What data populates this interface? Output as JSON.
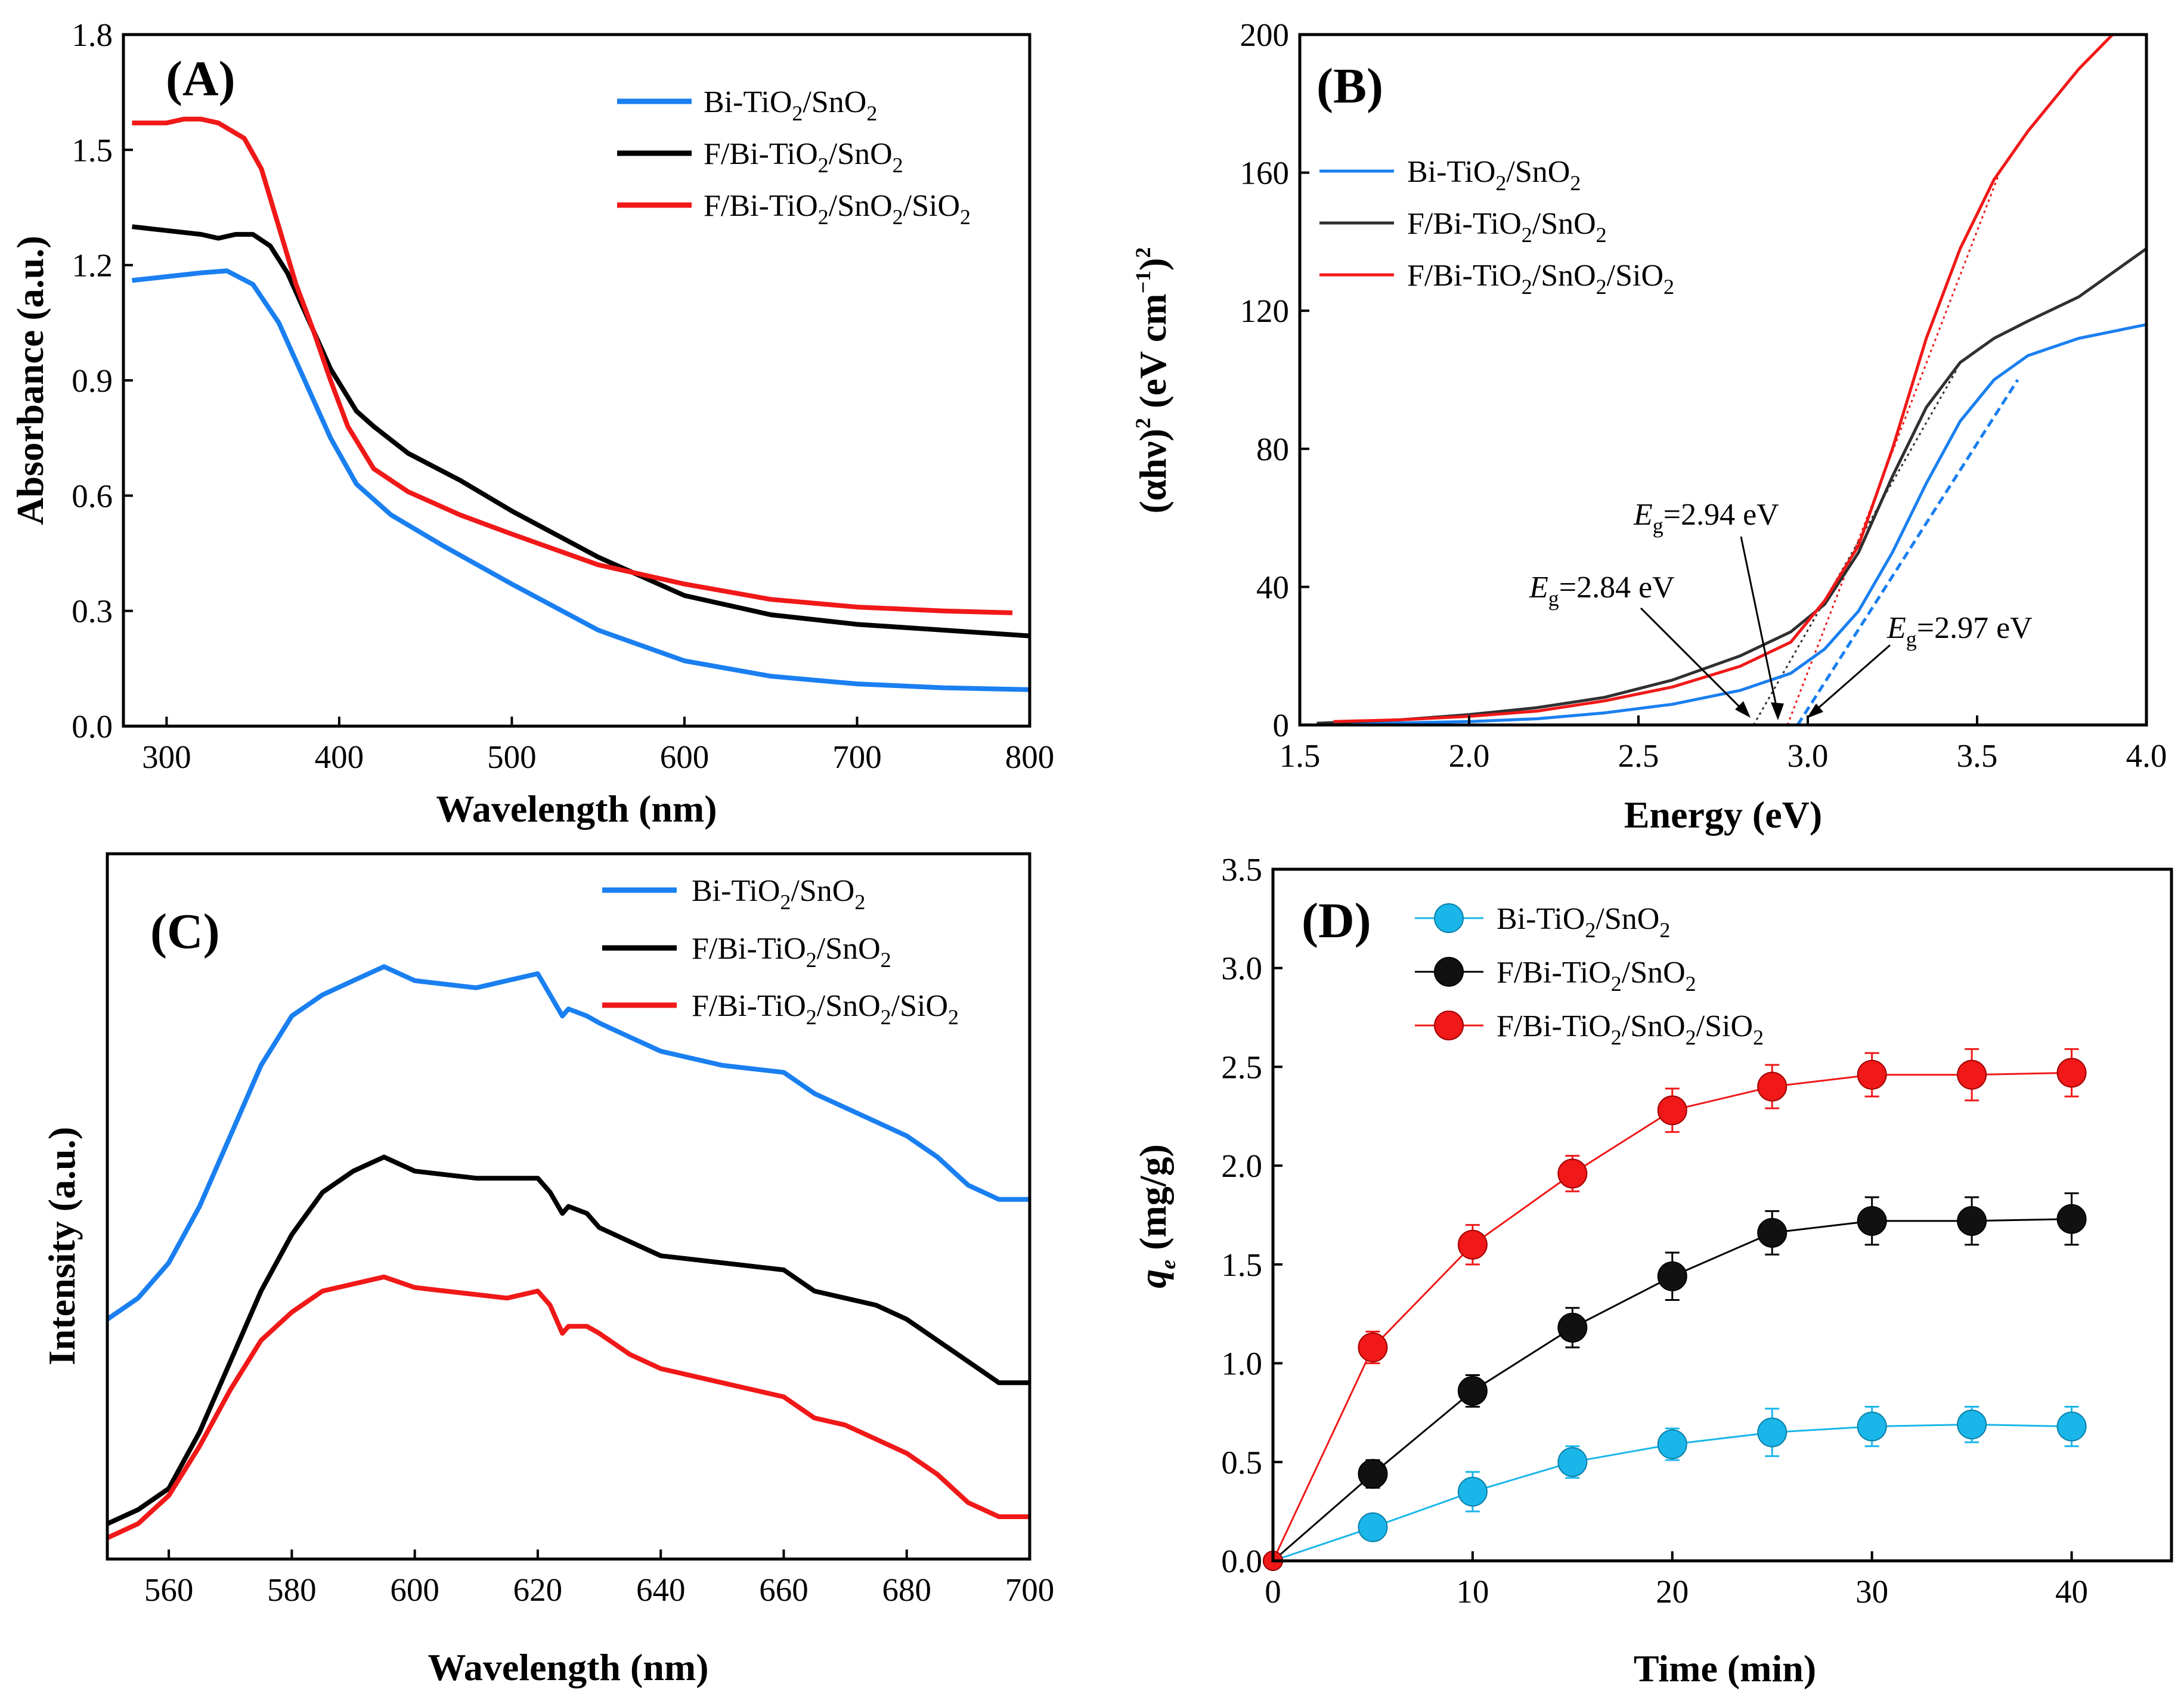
{
  "chart_data": [
    {
      "type": "line",
      "panel_label": "(A)",
      "xlabel": "Wavelength  (nm)",
      "ylabel": "Absorbance (a.u.)",
      "xlim": [
        275,
        800
      ],
      "ylim": [
        0.0,
        1.8
      ],
      "xticks": [
        "300",
        "400",
        "500",
        "600",
        "700",
        "800"
      ],
      "yticks": [
        "0.0",
        "0.3",
        "0.6",
        "0.9",
        "1.2",
        "1.5",
        "1.8"
      ],
      "legend_position": "top-right",
      "series": [
        {
          "name": "Bi-TiO2/SnO2",
          "color": "#1a7ff0",
          "x": [
            280,
            300,
            320,
            335,
            350,
            365,
            380,
            395,
            410,
            430,
            460,
            500,
            550,
            600,
            650,
            700,
            750,
            800
          ],
          "y": [
            1.16,
            1.17,
            1.18,
            1.185,
            1.15,
            1.05,
            0.9,
            0.75,
            0.63,
            0.55,
            0.47,
            0.37,
            0.25,
            0.17,
            0.13,
            0.11,
            0.1,
            0.095
          ]
        },
        {
          "name": "F/Bi-TiO2/SnO2",
          "color": "#000000",
          "x": [
            280,
            300,
            320,
            330,
            340,
            350,
            360,
            370,
            380,
            395,
            410,
            420,
            440,
            470,
            500,
            550,
            600,
            650,
            700,
            750,
            800
          ],
          "y": [
            1.3,
            1.29,
            1.28,
            1.27,
            1.28,
            1.28,
            1.25,
            1.18,
            1.08,
            0.93,
            0.82,
            0.78,
            0.71,
            0.64,
            0.56,
            0.44,
            0.34,
            0.29,
            0.265,
            0.25,
            0.235
          ]
        },
        {
          "name": "F/Bi-TiO2/SnO2/SiO2",
          "color": "#f01818",
          "x": [
            280,
            300,
            310,
            320,
            330,
            345,
            355,
            365,
            375,
            385,
            395,
            405,
            420,
            440,
            470,
            500,
            550,
            600,
            650,
            700,
            750,
            790
          ],
          "y": [
            1.57,
            1.57,
            1.58,
            1.58,
            1.57,
            1.53,
            1.45,
            1.3,
            1.15,
            1.03,
            0.9,
            0.78,
            0.67,
            0.61,
            0.55,
            0.5,
            0.42,
            0.37,
            0.33,
            0.31,
            0.3,
            0.295
          ]
        }
      ]
    },
    {
      "type": "line",
      "panel_label": "(B)",
      "xlabel": "Energy (eV)",
      "ylabel": "(αhν)2 (eV cm−1)2",
      "ylabel_parts": [
        "(αhν)",
        "2",
        " (eV cm",
        "−1",
        ")",
        "2"
      ],
      "xlim": [
        1.5,
        4.0
      ],
      "ylim": [
        0,
        200
      ],
      "xticks": [
        "1.5",
        "2.0",
        "2.5",
        "3.0",
        "3.5",
        "4.0"
      ],
      "yticks": [
        "0",
        "40",
        "80",
        "120",
        "160",
        "200"
      ],
      "legend_position": "upper-left",
      "series": [
        {
          "name": "Bi-TiO2/SnO2",
          "color": "#1a7ff0",
          "x": [
            1.55,
            1.8,
            2.0,
            2.2,
            2.4,
            2.6,
            2.8,
            2.95,
            3.05,
            3.15,
            3.25,
            3.35,
            3.45,
            3.55,
            3.65,
            3.8,
            4.0
          ],
          "y": [
            0.3,
            0.6,
            1.0,
            1.8,
            3.5,
            6,
            10,
            15,
            22,
            33,
            50,
            70,
            88,
            100,
            107,
            112,
            116
          ]
        },
        {
          "name": "F/Bi-TiO2/SnO2",
          "color": "#303030",
          "x": [
            1.55,
            1.8,
            2.0,
            2.2,
            2.4,
            2.6,
            2.8,
            2.95,
            3.05,
            3.15,
            3.25,
            3.35,
            3.45,
            3.55,
            3.65,
            3.8,
            4.0
          ],
          "y": [
            0.5,
            1.5,
            3,
            5,
            8,
            13,
            20,
            27,
            35,
            50,
            72,
            92,
            105,
            112,
            117,
            124,
            138
          ]
        },
        {
          "name": "F/Bi-TiO2/SnO2/SiO2",
          "color": "#f01818",
          "x": [
            1.6,
            1.8,
            2.0,
            2.2,
            2.4,
            2.6,
            2.8,
            2.95,
            3.05,
            3.15,
            3.25,
            3.35,
            3.45,
            3.55,
            3.65,
            3.8,
            3.9
          ],
          "y": [
            1,
            1.5,
            2.5,
            4,
            7,
            11,
            17,
            24,
            36,
            52,
            80,
            112,
            138,
            158,
            172,
            190,
            200
          ]
        }
      ],
      "tangents": [
        {
          "x": [
            2.84,
            3.44
          ],
          "y": [
            0,
            103
          ],
          "color": "#303030"
        },
        {
          "x": [
            2.94,
            3.57
          ],
          "y": [
            0,
            161
          ],
          "color": "#f01818"
        },
        {
          "x": [
            2.97,
            3.62
          ],
          "y": [
            0,
            100
          ],
          "color": "#1a7ff0"
        }
      ],
      "annotations": [
        {
          "prefix": "E",
          "sub": "g",
          "value": "=2.94 eV",
          "arrow_to": [
            2.94,
            0
          ]
        },
        {
          "prefix": "E",
          "sub": "g",
          "value": "=2.84 eV",
          "arrow_to": [
            2.84,
            0
          ]
        },
        {
          "prefix": "E",
          "sub": "g",
          "value": "=2.97 eV",
          "arrow_to": [
            2.97,
            0
          ]
        }
      ]
    },
    {
      "type": "line",
      "panel_label": "(C)",
      "xlabel": "Wavelength (nm)",
      "ylabel": "Intensity  (a.u.)",
      "xlim": [
        550,
        700
      ],
      "ylim": [
        0,
        1
      ],
      "xticks": [
        "560",
        "580",
        "600",
        "620",
        "640",
        "660",
        "680",
        "700"
      ],
      "yticks": [],
      "legend_position": "top-right",
      "series": [
        {
          "name": "Bi-TiO2/SnO2",
          "color": "#1a7ff0",
          "x": [
            550,
            555,
            560,
            565,
            570,
            575,
            580,
            585,
            590,
            595,
            600,
            605,
            610,
            615,
            620,
            622,
            624,
            625,
            628,
            630,
            635,
            640,
            650,
            660,
            665,
            670,
            675,
            680,
            685,
            690,
            695,
            700
          ],
          "y": [
            0.34,
            0.37,
            0.42,
            0.5,
            0.6,
            0.7,
            0.77,
            0.8,
            0.82,
            0.84,
            0.82,
            0.815,
            0.81,
            0.82,
            0.83,
            0.8,
            0.77,
            0.78,
            0.77,
            0.76,
            0.74,
            0.72,
            0.7,
            0.69,
            0.66,
            0.64,
            0.62,
            0.6,
            0.57,
            0.53,
            0.51,
            0.51
          ]
        },
        {
          "name": "F/Bi-TiO2/SnO2",
          "color": "#000000",
          "x": [
            550,
            555,
            560,
            565,
            570,
            575,
            580,
            585,
            590,
            595,
            600,
            605,
            610,
            615,
            620,
            622,
            624,
            625,
            628,
            630,
            635,
            640,
            650,
            660,
            665,
            670,
            675,
            680,
            685,
            690,
            695,
            700
          ],
          "y": [
            0.05,
            0.07,
            0.1,
            0.18,
            0.28,
            0.38,
            0.46,
            0.52,
            0.55,
            0.57,
            0.55,
            0.545,
            0.54,
            0.54,
            0.54,
            0.52,
            0.49,
            0.5,
            0.49,
            0.47,
            0.45,
            0.43,
            0.42,
            0.41,
            0.38,
            0.37,
            0.36,
            0.34,
            0.31,
            0.28,
            0.25,
            0.25
          ]
        },
        {
          "name": "F/Bi-TiO2/SnO2/SiO2",
          "color": "#f01818",
          "x": [
            550,
            555,
            560,
            565,
            570,
            575,
            580,
            585,
            590,
            595,
            600,
            605,
            610,
            615,
            620,
            622,
            624,
            625,
            628,
            630,
            635,
            640,
            650,
            660,
            665,
            670,
            675,
            680,
            685,
            690,
            695,
            700
          ],
          "y": [
            0.03,
            0.05,
            0.09,
            0.16,
            0.24,
            0.31,
            0.35,
            0.38,
            0.39,
            0.4,
            0.385,
            0.38,
            0.375,
            0.37,
            0.38,
            0.36,
            0.32,
            0.33,
            0.33,
            0.32,
            0.29,
            0.27,
            0.25,
            0.23,
            0.2,
            0.19,
            0.17,
            0.15,
            0.12,
            0.08,
            0.06,
            0.06
          ]
        }
      ]
    },
    {
      "type": "scatter",
      "panel_label": "(D)",
      "xlabel": "Time (min)",
      "ylabel_italic": "q",
      "ylabel_sub": "e",
      "ylabel_unit": "  (mg/g)",
      "xlim": [
        0,
        45
      ],
      "ylim": [
        0.0,
        3.5
      ],
      "xticks": [
        "0",
        "10",
        "20",
        "30",
        "40"
      ],
      "yticks": [
        "0.0",
        "0.5",
        "1.0",
        "1.5",
        "2.0",
        "2.5",
        "3.0",
        "3.5"
      ],
      "legend_position": "top-left",
      "series": [
        {
          "name": "Bi-TiO2/SnO2",
          "color": "#1ab6ea",
          "x": [
            0,
            5,
            10,
            15,
            20,
            25,
            30,
            35,
            40
          ],
          "y": [
            0,
            0.17,
            0.35,
            0.5,
            0.59,
            0.65,
            0.68,
            0.69,
            0.68
          ],
          "err": [
            0,
            0.04,
            0.1,
            0.08,
            0.08,
            0.12,
            0.1,
            0.09,
            0.1
          ]
        },
        {
          "name": "F/Bi-TiO2/SnO2",
          "color": "#000000",
          "x": [
            0,
            5,
            10,
            15,
            20,
            25,
            30,
            35,
            40
          ],
          "y": [
            0,
            0.44,
            0.86,
            1.18,
            1.44,
            1.66,
            1.72,
            1.72,
            1.73
          ],
          "err": [
            0,
            0.07,
            0.08,
            0.1,
            0.12,
            0.11,
            0.12,
            0.12,
            0.13
          ]
        },
        {
          "name": "F/Bi-TiO2/SnO2/SiO2",
          "color": "#f01818",
          "x": [
            0,
            5,
            10,
            15,
            20,
            25,
            30,
            35,
            40
          ],
          "y": [
            0,
            1.08,
            1.6,
            1.96,
            2.28,
            2.4,
            2.46,
            2.46,
            2.47
          ],
          "err": [
            0,
            0.08,
            0.1,
            0.09,
            0.11,
            0.11,
            0.11,
            0.13,
            0.12
          ]
        }
      ]
    }
  ],
  "legend_text": {
    "bi": {
      "a": "Bi-TiO",
      "b": "2",
      "c": "/SnO",
      "d": "2"
    },
    "fbi": {
      "a": "F/Bi-TiO",
      "b": "2",
      "c": "/SnO",
      "d": "2"
    },
    "fbisi": {
      "a": "F/Bi-TiO",
      "b": "2",
      "c": "/SnO",
      "d": "2",
      "e": "/SiO",
      "f": "2"
    }
  }
}
